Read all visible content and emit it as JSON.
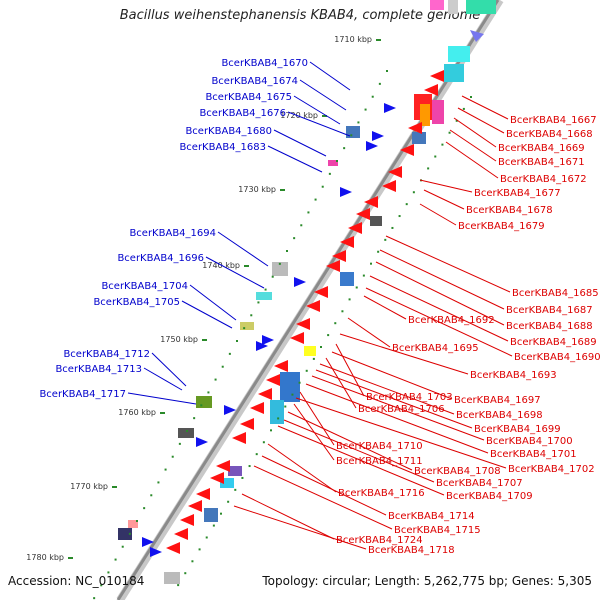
{
  "title": "Bacillus weihenstephanensis KBAB4, complete genome",
  "footer": {
    "accession": "Accession: NC_010184",
    "topology": "Topology: circular; Length: 5,262,775 bp; Genes: 5,305"
  },
  "colors": {
    "forward_label": "#0000cc",
    "reverse_label": "#dd0000",
    "backbone": "#999999",
    "tick": "#2a8a2a"
  },
  "kbp_ticks": [
    "1710 kbp",
    "1720 kbp",
    "1730 kbp",
    "1740 kbp",
    "1750 kbp",
    "1760 kbp",
    "1770 kbp",
    "1780 kbp"
  ],
  "left_labels": [
    "BcerKBAB4_1670",
    "BcerKBAB4_1674",
    "BcerKBAB4_1675",
    "BcerKBAB4_1676",
    "BcerKBAB4_1680",
    "BcerKBAB4_1683",
    "BcerKBAB4_1694",
    "BcerKBAB4_1696",
    "BcerKBAB4_1704",
    "BcerKBAB4_1705",
    "BcerKBAB4_1712",
    "BcerKBAB4_1713",
    "BcerKBAB4_1717"
  ],
  "right_labels": [
    "BcerKBAB4_1667",
    "BcerKBAB4_1668",
    "BcerKBAB4_1669",
    "BcerKBAB4_1671",
    "BcerKBAB4_1672",
    "BcerKBAB4_1677",
    "BcerKBAB4_1678",
    "BcerKBAB4_1679",
    "BcerKBAB4_1685",
    "BcerKBAB4_1687",
    "BcerKBAB4_1688",
    "BcerKBAB4_1689",
    "BcerKBAB4_1690",
    "BcerKBAB4_1692",
    "BcerKBAB4_1695",
    "BcerKBAB4_1693",
    "BcerKBAB4_1703",
    "BcerKBAB4_1697",
    "BcerKBAB4_1706",
    "BcerKBAB4_1698",
    "BcerKBAB4_1699",
    "BcerKBAB4_1700",
    "BcerKBAB4_1701",
    "BcerKBAB4_1710",
    "BcerKBAB4_1702",
    "BcerKBAB4_1711",
    "BcerKBAB4_1708",
    "BcerKBAB4_1707",
    "BcerKBAB4_1709",
    "BcerKBAB4_1716",
    "BcerKBAB4_1714",
    "BcerKBAB4_1715",
    "BcerKBAB4_1724",
    "BcerKBAB4_1718"
  ]
}
